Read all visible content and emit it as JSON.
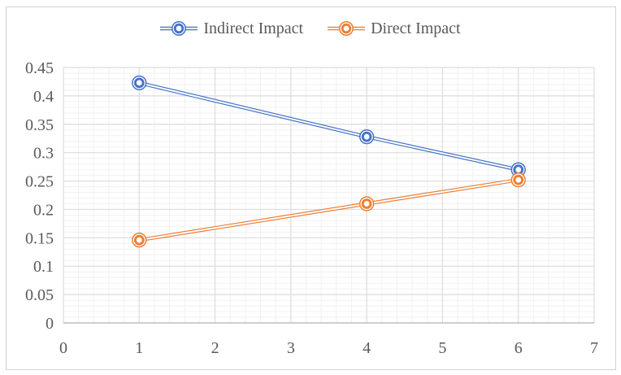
{
  "window": {
    "background": "#FFFFFF",
    "frame_border_color": "#D2D2D2"
  },
  "chart_data": {
    "type": "line",
    "title": "",
    "xlabel": "",
    "ylabel": "",
    "x": [
      1,
      4,
      6
    ],
    "series": [
      {
        "name": "Indirect Impact",
        "color": "#4472C4",
        "values": [
          0.423,
          0.328,
          0.27
        ]
      },
      {
        "name": "Direct Impact",
        "color": "#ED7D31",
        "values": [
          0.146,
          0.21,
          0.252
        ]
      }
    ],
    "xlim": [
      0,
      7
    ],
    "ylim": [
      0,
      0.45
    ],
    "x_major_unit": 1,
    "x_minor_unit": 0.2,
    "y_major_unit": 0.05,
    "y_minor_unit": 0.01,
    "x_tick_labels": [
      "0",
      "1",
      "2",
      "3",
      "4",
      "5",
      "6",
      "7"
    ],
    "y_tick_labels": [
      "0",
      "0.05",
      "0.1",
      "0.15",
      "0.2",
      "0.25",
      "0.3",
      "0.35",
      "0.4",
      "0.45"
    ],
    "legend_entries": [
      "Indirect Impact",
      "Direct Impact"
    ],
    "legend_position": "top-center",
    "grid": {
      "major": true,
      "minor": true
    },
    "marker_style": "double-circle",
    "line_style": "double",
    "colors": {
      "major_grid": "#DCDCDC",
      "minor_grid": "#F1F1F1",
      "axis_line": "#BFBFBF",
      "tick_text": "#595959"
    }
  }
}
